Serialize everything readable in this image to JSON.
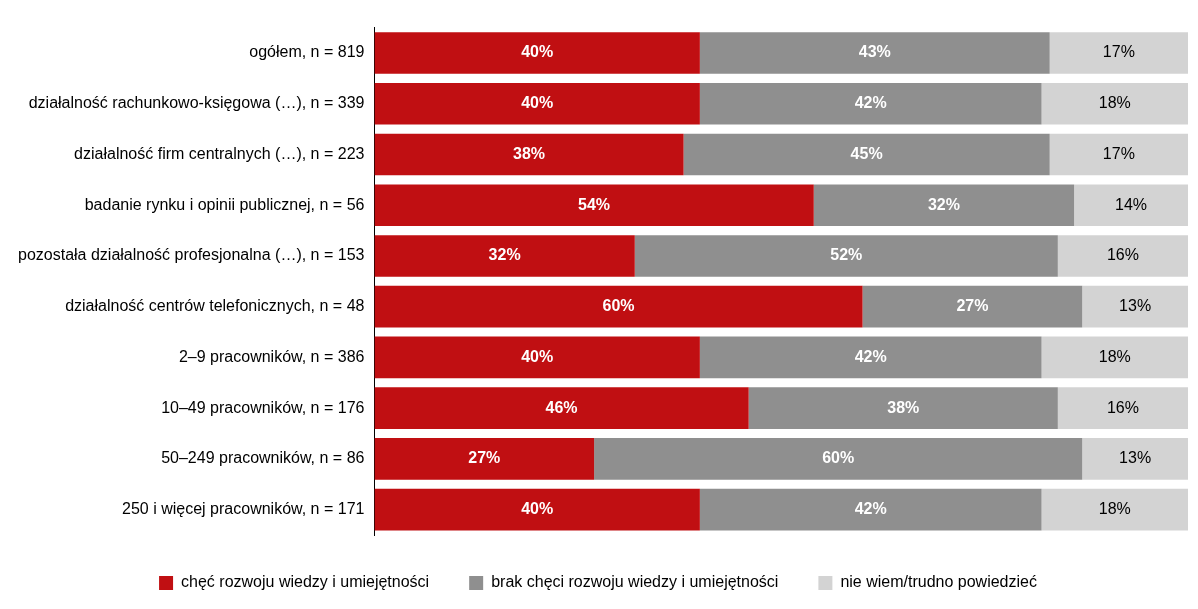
{
  "chart_data": {
    "type": "bar",
    "orientation": "horizontal",
    "stacked": true,
    "legend": "bottom",
    "tick_labels": "y",
    "categories": [
      "ogółem, n = 819",
      "działalność rachunkowo-księgowa (…), n = 339",
      "działalność firm centralnych (…), n = 223",
      "badanie rynku i opinii publicznej, n = 56",
      "pozostała działalność profesjonalna (…), n = 153",
      "działalność centrów telefonicznych, n = 48",
      "2–9 pracowników, n = 386",
      "10–49 pracowników, n = 176",
      "50–249 pracowników, n = 86",
      "250 i więcej pracowników, n = 171"
    ],
    "series": [
      {
        "name": "chęć rozwoju wiedzy i umiejętności",
        "color": "#c00f12",
        "values": [
          40,
          40,
          38,
          54,
          32,
          60,
          40,
          46,
          27,
          40
        ],
        "value_labels": [
          "40%",
          "40%",
          "38%",
          "54%",
          "32%",
          "60%",
          "40%",
          "46%",
          "27%",
          "40%"
        ]
      },
      {
        "name": "brak chęci rozwoju wiedzy i umiejętności",
        "color": "#8f8f8f",
        "values": [
          43,
          42,
          45,
          32,
          52,
          27,
          42,
          38,
          60,
          42
        ],
        "value_labels": [
          "43%",
          "42%",
          "45%",
          "32%",
          "52%",
          "27%",
          "42%",
          "38%",
          "60%",
          "42%"
        ]
      },
      {
        "name": "nie wiem/trudno powiedzieć",
        "color": "#d3d3d3",
        "values": [
          17,
          18,
          17,
          14,
          16,
          13,
          18,
          16,
          13,
          18
        ],
        "value_labels": [
          "17%",
          "18%",
          "17%",
          "14%",
          "16%",
          "13%",
          "18%",
          "16%",
          "13%",
          "18%"
        ]
      }
    ]
  }
}
